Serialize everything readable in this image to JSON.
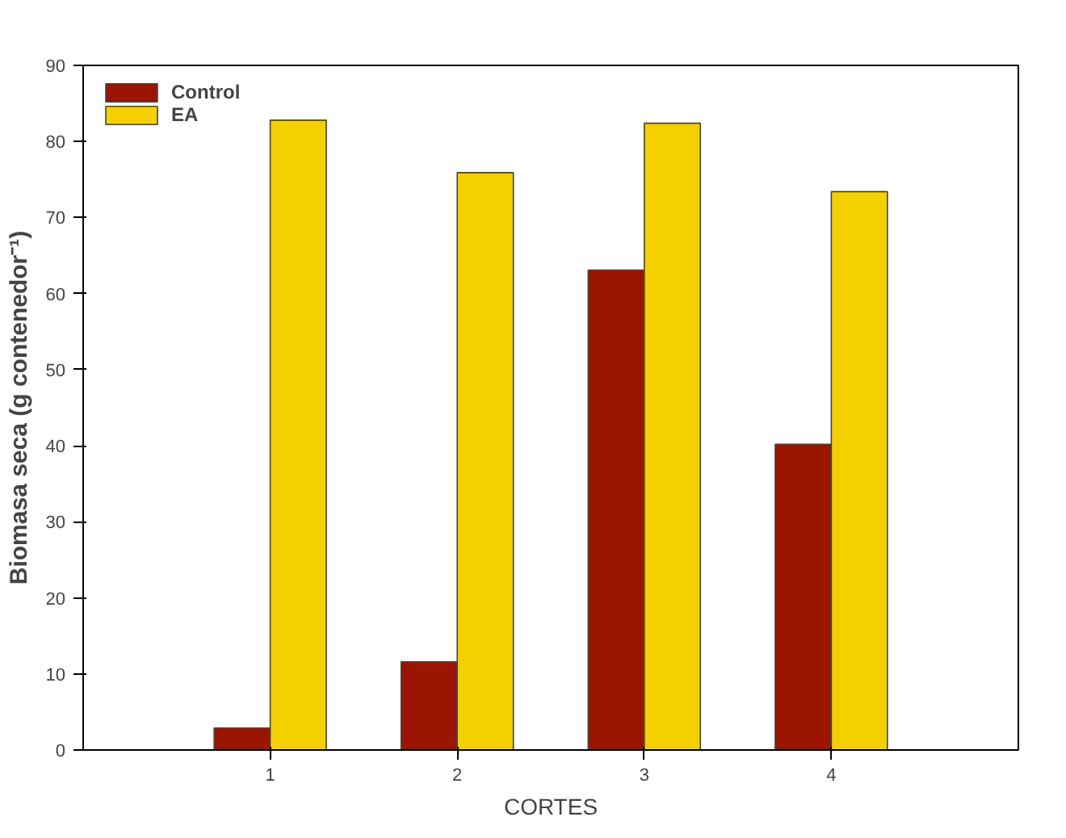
{
  "chart_data": {
    "type": "bar",
    "x": [
      1,
      2,
      3,
      4
    ],
    "xlabel": "CORTES",
    "ylabel": "Biomasa seca (g contenedor⁻¹)",
    "xlim": [
      0,
      5
    ],
    "xticks": [
      1,
      2,
      3,
      4
    ],
    "ylim": [
      0,
      90
    ],
    "yticks": [
      0,
      10,
      20,
      30,
      40,
      50,
      60,
      70,
      80,
      90
    ],
    "grid": false,
    "legend": "top left",
    "series": [
      {
        "name": "Control",
        "color": "#9b1500",
        "values": [
          2.9,
          11.6,
          63.1,
          40.2
        ]
      },
      {
        "name": "EA",
        "color": "#f5d000",
        "values": [
          82.8,
          75.9,
          82.4,
          73.4
        ]
      }
    ]
  }
}
